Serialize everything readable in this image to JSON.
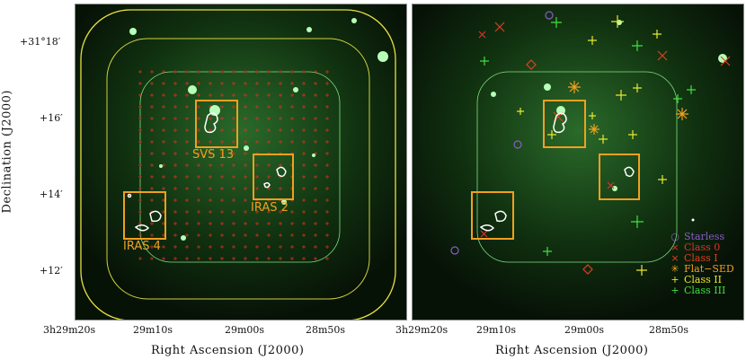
{
  "figure": {
    "y_axis_title": "Declination (J2000)",
    "x_axis_title": "Right Ascension (J2000)",
    "dec_ticks": [
      "+31°18′",
      "+16′",
      "+14′",
      "+12′"
    ],
    "ra_ticks": [
      "3h29m20s",
      "29m10s",
      "29m00s",
      "28m50s"
    ]
  },
  "left_panel": {
    "regions": [
      "SVS 13",
      "IRAS 2",
      "IRAS 4"
    ]
  },
  "right_panel": {
    "legend": [
      {
        "label": "Starless",
        "color": "#8a5cc8",
        "symbol": "○"
      },
      {
        "label": "Class 0",
        "color": "#e03030",
        "symbol": "×"
      },
      {
        "label": "Class I",
        "color": "#e04020",
        "symbol": "×"
      },
      {
        "label": "Flat−SED",
        "color": "#f0a020",
        "symbol": "✳"
      },
      {
        "label": "Class II",
        "color": "#e8e830",
        "symbol": "+"
      },
      {
        "label": "Class III",
        "color": "#40e040",
        "symbol": "+"
      }
    ]
  },
  "colors": {
    "background": "#0a1a0a",
    "contour_yellow": "#e8e040",
    "contour_green": "#80e080",
    "box_orange": "#f0a020",
    "grid_red": "#e03020"
  }
}
